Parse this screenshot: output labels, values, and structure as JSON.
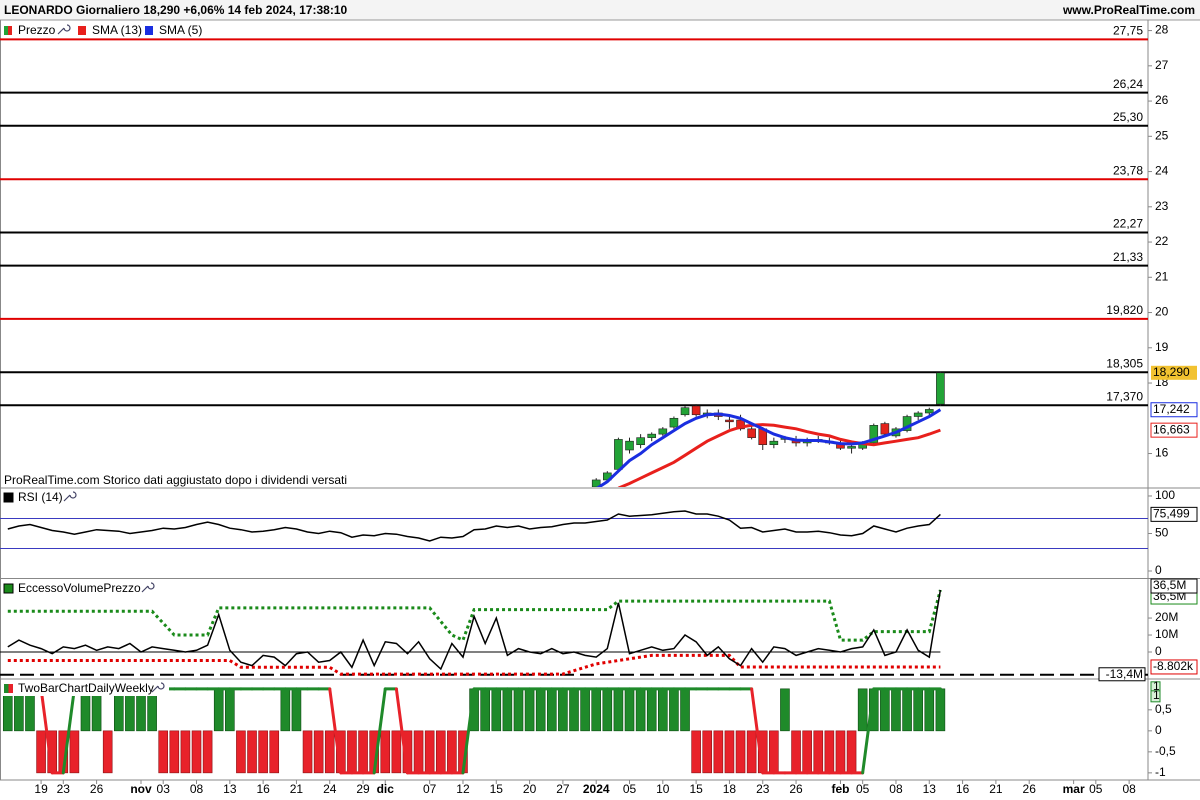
{
  "header": {
    "title": "LEONARDO Giornaliero 18,290 +6,06% 14 feb 2024, 17:38:10",
    "source": "www.ProRealTime.com"
  },
  "chart_data": [
    {
      "type": "candlestick",
      "name": "Prezzo",
      "note": "ProRealTime.com  Storico dati aggiustato dopo i dividendi versati",
      "up_color": "#22a336",
      "down_color": "#e3231c",
      "last_label": "18,290",
      "tag_color": "#f2c230",
      "x": [
        50,
        51,
        52,
        53,
        54,
        55,
        56,
        57,
        58,
        59,
        60,
        61,
        62,
        63,
        64,
        65,
        66,
        67,
        68,
        69,
        70,
        71,
        72,
        73,
        74,
        75,
        76,
        77,
        78,
        79,
        80,
        81
      ],
      "open": [
        15.05,
        15.25,
        15.55,
        16.1,
        16.25,
        16.45,
        16.55,
        16.75,
        17.1,
        17.35,
        17.1,
        17.15,
        16.95,
        16.95,
        16.7,
        16.7,
        16.25,
        16.4,
        16.4,
        16.3,
        16.4,
        16.35,
        16.3,
        16.15,
        16.15,
        16.3,
        16.85,
        16.5,
        16.65,
        17.05,
        17.15,
        17.4
      ],
      "high": [
        15.3,
        15.5,
        16.45,
        16.45,
        16.55,
        16.6,
        16.75,
        17.05,
        17.35,
        17.4,
        17.25,
        17.25,
        17.05,
        17.1,
        16.8,
        16.75,
        16.45,
        16.5,
        16.5,
        16.45,
        16.5,
        16.45,
        16.4,
        16.3,
        16.35,
        16.85,
        16.9,
        16.75,
        17.1,
        17.2,
        17.3,
        18.33
      ],
      "low": [
        15.0,
        15.2,
        15.5,
        16.0,
        16.15,
        16.35,
        16.5,
        16.7,
        17.05,
        17.05,
        17.0,
        16.95,
        16.7,
        16.65,
        16.4,
        16.1,
        16.15,
        16.3,
        16.2,
        16.2,
        16.3,
        16.25,
        16.1,
        16.0,
        16.1,
        16.25,
        16.5,
        16.45,
        16.6,
        16.95,
        17.05,
        17.35
      ],
      "close": [
        15.25,
        15.45,
        16.4,
        16.35,
        16.45,
        16.55,
        16.7,
        17.0,
        17.3,
        17.1,
        17.15,
        17.05,
        16.9,
        16.7,
        16.45,
        16.25,
        16.35,
        16.45,
        16.3,
        16.4,
        16.4,
        16.3,
        16.15,
        16.2,
        16.3,
        16.8,
        16.55,
        16.7,
        17.05,
        17.15,
        17.25,
        18.29
      ],
      "series": [
        {
          "name": "SMA (13)",
          "color": "#e8201c",
          "last_label": "16,663",
          "values": [
            null,
            null,
            15.02,
            15.15,
            15.3,
            15.45,
            15.6,
            15.75,
            15.95,
            16.15,
            16.35,
            16.5,
            16.65,
            16.75,
            16.8,
            16.82,
            16.8,
            16.75,
            16.7,
            16.62,
            16.55,
            16.5,
            16.4,
            16.33,
            16.28,
            16.25,
            16.3,
            16.35,
            16.4,
            16.45,
            16.55,
            16.663
          ]
        },
        {
          "name": "SMA (5)",
          "color": "#1a2ee0",
          "last_label": "17,242",
          "values": [
            15.0,
            15.2,
            15.5,
            15.8,
            16.0,
            16.25,
            16.45,
            16.65,
            16.85,
            17.0,
            17.1,
            17.12,
            17.08,
            17.0,
            16.85,
            16.7,
            16.55,
            16.45,
            16.38,
            16.37,
            16.37,
            16.33,
            16.28,
            16.27,
            16.3,
            16.4,
            16.5,
            16.6,
            16.75,
            16.9,
            17.05,
            17.242
          ]
        }
      ],
      "levels": [
        {
          "value": 27.75,
          "label": "27,75",
          "color": "#e00000"
        },
        {
          "value": 26.24,
          "label": "26,24",
          "color": "#000000"
        },
        {
          "value": 25.3,
          "label": "25,30",
          "color": "#000000"
        },
        {
          "value": 23.78,
          "label": "23,78",
          "color": "#e00000"
        },
        {
          "value": 22.27,
          "label": "22,27",
          "color": "#000000"
        },
        {
          "value": 21.33,
          "label": "21,33",
          "color": "#000000"
        },
        {
          "value": 19.82,
          "label": "19,820",
          "color": "#e00000"
        },
        {
          "value": 18.305,
          "label": "18,305",
          "color": "#000000"
        },
        {
          "value": 17.37,
          "label": "17,370",
          "color": "#000000"
        }
      ],
      "xlim": [
        -3.7,
        99.7
      ],
      "ylim": [
        15.05,
        28.3
      ],
      "yticks": [
        16,
        18,
        19,
        20,
        21,
        22,
        23,
        24,
        25,
        26,
        27,
        28
      ]
    },
    {
      "type": "line",
      "name": "RSI (14)",
      "color": "#000000",
      "last_label": "75,499",
      "levels": [
        70,
        30
      ],
      "level_color": "#3a3ac0",
      "x": [
        -3,
        -2,
        -1,
        0,
        1,
        2,
        3,
        4,
        5,
        6,
        7,
        8,
        9,
        10,
        11,
        12,
        13,
        14,
        15,
        16,
        17,
        18,
        19,
        20,
        21,
        22,
        23,
        24,
        25,
        26,
        27,
        28,
        29,
        30,
        31,
        32,
        33,
        34,
        35,
        36,
        37,
        38,
        39,
        40,
        41,
        42,
        43,
        44,
        45,
        46,
        47,
        48,
        49,
        50,
        51,
        52,
        53,
        54,
        55,
        56,
        57,
        58,
        59,
        60,
        61,
        62,
        63,
        64,
        65,
        66,
        67,
        68,
        69,
        70,
        71,
        72,
        73,
        74,
        75,
        76,
        77,
        78,
        79,
        80,
        81
      ],
      "values": [
        56,
        60,
        62,
        58,
        54,
        52,
        49,
        52,
        55,
        54,
        53,
        50,
        52,
        54,
        57,
        56,
        58,
        62,
        65,
        62,
        57,
        55,
        52,
        53,
        55,
        58,
        56,
        52,
        50,
        53,
        51,
        45,
        48,
        47,
        50,
        49,
        46,
        44,
        40,
        45,
        44,
        46,
        55,
        56,
        60,
        58,
        60,
        56,
        58,
        59,
        62,
        64,
        64,
        66,
        68,
        76,
        73,
        74,
        75,
        77,
        79,
        80,
        76,
        76,
        73,
        68,
        57,
        58,
        52,
        54,
        56,
        52,
        52,
        53,
        51,
        48,
        47,
        50,
        60,
        56,
        52,
        57,
        60,
        62,
        75.499
      ],
      "xlim": [
        -3.7,
        99.7
      ],
      "ylim": [
        -8,
        109.3
      ],
      "yticks": [
        0,
        50,
        100
      ]
    },
    {
      "type": "line",
      "name": "EccessoVolumePrezzo",
      "color": "#000000",
      "last_label": "36,5M",
      "x": [
        -3,
        -2,
        -1,
        0,
        1,
        2,
        3,
        4,
        5,
        6,
        7,
        8,
        9,
        10,
        11,
        12,
        13,
        14,
        15,
        16,
        17,
        18,
        19,
        20,
        21,
        22,
        23,
        24,
        25,
        26,
        27,
        28,
        29,
        30,
        31,
        32,
        33,
        34,
        35,
        36,
        37,
        38,
        39,
        40,
        41,
        42,
        43,
        44,
        45,
        46,
        47,
        48,
        49,
        50,
        51,
        52,
        53,
        54,
        55,
        56,
        57,
        58,
        59,
        60,
        61,
        62,
        63,
        64,
        65,
        66,
        67,
        68,
        69,
        70,
        71,
        72,
        73,
        74,
        75,
        76,
        77,
        78,
        79,
        80,
        81
      ],
      "values": [
        3,
        7,
        4,
        2,
        -1,
        3,
        2,
        4,
        1,
        3,
        2,
        5,
        0,
        3,
        2,
        1,
        0,
        1,
        4,
        22,
        1,
        -6,
        -8,
        -2,
        -3,
        -8,
        -1,
        0,
        -6,
        -5,
        0,
        -9,
        7,
        -8,
        6,
        5,
        -1,
        6,
        -4,
        -10,
        5,
        -3,
        21,
        5,
        20,
        -2,
        2,
        0,
        -1,
        2,
        -1,
        0,
        -2,
        -3,
        2,
        29,
        -1,
        1,
        3,
        1,
        2,
        10,
        6,
        -2,
        3,
        -4,
        -8,
        2,
        -6,
        3,
        2,
        -2,
        0,
        2,
        1,
        0,
        2,
        3,
        13,
        -2,
        0,
        13,
        1,
        -3,
        36.5
      ],
      "series": [
        {
          "color": "#1a8a1a",
          "last_label": "36,5M",
          "x": [
            -3,
            10,
            12,
            15,
            16,
            35,
            37,
            38,
            39,
            51,
            52,
            71,
            72,
            74,
            75,
            80,
            81
          ],
          "values": [
            24,
            24,
            10,
            10,
            26,
            26,
            10,
            7,
            25,
            25,
            30,
            30,
            7,
            7,
            12,
            12,
            36.5
          ]
        },
        {
          "color": "#e00000",
          "last_label": "-8.802k",
          "x": [
            -3,
            17,
            18,
            26,
            27,
            47,
            48,
            50,
            53,
            55,
            62,
            63,
            81
          ],
          "values": [
            -5,
            -5,
            -9,
            -9,
            -13,
            -13,
            -11,
            -7,
            -4,
            -2,
            -2,
            -8.802,
            -8.802
          ]
        }
      ],
      "levels": [
        {
          "value": -13.4,
          "label": "-13,4M"
        }
      ],
      "xlim": [
        -3.7,
        99.7
      ],
      "ylim": [
        -15.3,
        42.4
      ],
      "yticks": [
        0,
        {
          "value": 10,
          "label": "10M"
        },
        {
          "value": 20,
          "label": "20M"
        }
      ]
    },
    {
      "type": "bar",
      "name": "TwoBarChartDailyWeekly",
      "up_color": "#1f8a2a",
      "down_color": "#e8222a",
      "x": [
        -3,
        -2,
        -1,
        0,
        1,
        2,
        3,
        4,
        5,
        6,
        7,
        8,
        9,
        10,
        11,
        12,
        13,
        14,
        15,
        16,
        17,
        18,
        19,
        20,
        21,
        22,
        23,
        24,
        25,
        26,
        27,
        28,
        29,
        30,
        31,
        32,
        33,
        34,
        35,
        36,
        37,
        38,
        39,
        40,
        41,
        42,
        43,
        44,
        45,
        46,
        47,
        48,
        49,
        50,
        51,
        52,
        53,
        54,
        55,
        56,
        57,
        58,
        59,
        60,
        61,
        62,
        63,
        64,
        65,
        66,
        67,
        68,
        69,
        70,
        71,
        72,
        73,
        74,
        75,
        76,
        77,
        78,
        79,
        80,
        81
      ],
      "values": [
        1,
        1,
        1,
        -1,
        -1,
        -1,
        -1,
        1,
        1,
        -1,
        1,
        1,
        1,
        1,
        -1,
        -1,
        -1,
        -1,
        -1,
        1,
        1,
        -1,
        -1,
        -1,
        -1,
        1,
        1,
        -1,
        -1,
        -1,
        -1,
        -1,
        -1,
        -1,
        -1,
        -1,
        -1,
        -1,
        -1,
        -1,
        -1,
        -1,
        1,
        1,
        1,
        1,
        1,
        1,
        1,
        1,
        1,
        1,
        1,
        1,
        1,
        1,
        1,
        1,
        1,
        1,
        1,
        1,
        -1,
        -1,
        -1,
        -1,
        -1,
        -1,
        -1,
        -1,
        1,
        -1,
        -1,
        -1,
        -1,
        -1,
        -1,
        1,
        1,
        1,
        1,
        1,
        1,
        1,
        1
      ],
      "line_values": [
        1,
        1,
        1,
        1,
        -1,
        -1,
        1,
        1,
        1,
        1,
        1,
        1,
        1,
        1,
        1,
        1,
        1,
        1,
        1,
        1,
        1,
        1,
        1,
        1,
        1,
        1,
        1,
        1,
        1,
        1,
        -1,
        -1,
        -1,
        -1,
        1,
        1,
        -1,
        -1,
        -1,
        -1,
        -1,
        -1,
        1,
        1,
        1,
        1,
        1,
        1,
        1,
        1,
        1,
        1,
        1,
        1,
        1,
        1,
        1,
        1,
        1,
        1,
        1,
        1,
        1,
        1,
        1,
        1,
        1,
        1,
        -1,
        -1,
        -1,
        -1,
        -1,
        -1,
        -1,
        -1,
        -1,
        -1,
        1,
        1,
        1,
        1,
        1,
        1,
        1
      ],
      "xlim": [
        -3.7,
        99.7
      ],
      "ylim": [
        -1.17,
        1.21
      ],
      "yticks": [
        -1,
        {
          "value": -0.5,
          "label": "-0,5"
        },
        0,
        {
          "value": 0.5,
          "label": "0,5"
        }
      ],
      "xticks": [
        {
          "value": 0,
          "label": "19"
        },
        {
          "value": 2,
          "label": "23"
        },
        {
          "value": 5,
          "label": "26"
        },
        {
          "value": 9,
          "label": "nov"
        },
        {
          "value": 11,
          "label": "03"
        },
        {
          "value": 14,
          "label": "08"
        },
        {
          "value": 17,
          "label": "13"
        },
        {
          "value": 20,
          "label": "16"
        },
        {
          "value": 23,
          "label": "21"
        },
        {
          "value": 26,
          "label": "24"
        },
        {
          "value": 29,
          "label": "29"
        },
        {
          "value": 31,
          "label": "dic"
        },
        {
          "value": 35,
          "label": "07"
        },
        {
          "value": 38,
          "label": "12"
        },
        {
          "value": 41,
          "label": "15"
        },
        {
          "value": 44,
          "label": "20"
        },
        {
          "value": 47,
          "label": "27"
        },
        {
          "value": 50,
          "label": "2024"
        },
        {
          "value": 53,
          "label": "05"
        },
        {
          "value": 56,
          "label": "10"
        },
        {
          "value": 59,
          "label": "15"
        },
        {
          "value": 62,
          "label": "18"
        },
        {
          "value": 65,
          "label": "23"
        },
        {
          "value": 68,
          "label": "26"
        },
        {
          "value": 72,
          "label": "feb"
        },
        {
          "value": 74,
          "label": "05"
        },
        {
          "value": 77,
          "label": "08"
        },
        {
          "value": 80,
          "label": "13"
        },
        {
          "value": 83,
          "label": "16"
        },
        {
          "value": 86,
          "label": "21"
        },
        {
          "value": 89,
          "label": "26"
        },
        {
          "value": 93,
          "label": "mar"
        },
        {
          "value": 95,
          "label": "05"
        },
        {
          "value": 98,
          "label": "08"
        }
      ]
    }
  ]
}
